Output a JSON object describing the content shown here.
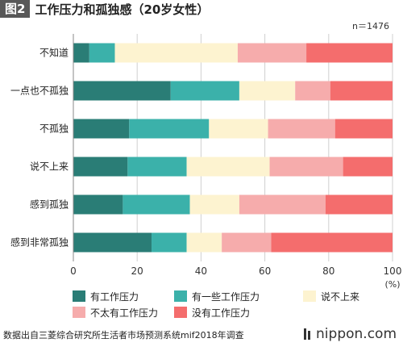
{
  "figure_label": "图2",
  "title": "工作压力和孤独感（20岁女性）",
  "sample_size": "n＝1476",
  "source": "数据出自三菱综合研究所生活者市场预测系统mif2018年调查",
  "logo_text": "nippon.com",
  "colors": [
    "#2a7d76",
    "#3bb1aa",
    "#fdf3d0",
    "#f6acac",
    "#f46d6d"
  ],
  "chart_data": {
    "type": "bar",
    "orientation": "horizontal",
    "stacked": true,
    "categories": [
      "不知道",
      "一点也不孤独",
      "不孤独",
      "说不上来",
      "感到孤独",
      "感到非常孤独"
    ],
    "series": [
      {
        "name": "有工作压力",
        "values": [
          5,
          30.5,
          17.5,
          17,
          15.5,
          24.5
        ]
      },
      {
        "name": "有一些工作压力",
        "values": [
          8,
          21.5,
          25,
          18.5,
          21,
          11
        ]
      },
      {
        "name": "说不上来",
        "values": [
          38.5,
          17.5,
          18.5,
          26,
          15.5,
          11
        ]
      },
      {
        "name": "不太有工作压力",
        "values": [
          21.5,
          11,
          21,
          23,
          27,
          15.5
        ]
      },
      {
        "name": "没有工作压力",
        "values": [
          27,
          19.5,
          18,
          15.5,
          21,
          38
        ]
      }
    ],
    "x_ticks": [
      "0",
      "20",
      "40",
      "60",
      "80",
      "100"
    ],
    "xlim": [
      0,
      100
    ],
    "x_unit": "(%)",
    "grid": true
  }
}
